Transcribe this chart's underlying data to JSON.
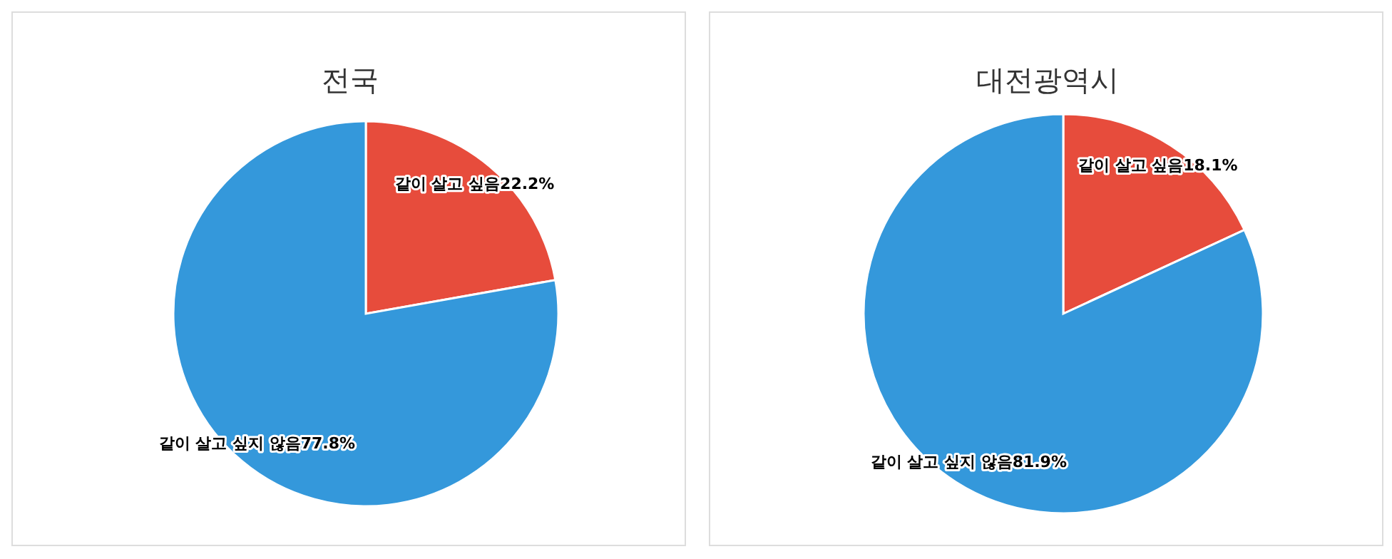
{
  "chart_data": [
    {
      "type": "pie",
      "title": "전국",
      "categories": [
        "같이 살고 싶음",
        "같이 살고 싶지 않음"
      ],
      "values": [
        22.2,
        77.8
      ],
      "colors": [
        "#e74c3c",
        "#3498db"
      ],
      "value_labels": [
        "22.2%",
        "77.8%"
      ]
    },
    {
      "type": "pie",
      "title": "대전광역시",
      "categories": [
        "같이 살고 싶음",
        "같이 살고 싶지 않음"
      ],
      "values": [
        18.1,
        81.9
      ],
      "colors": [
        "#e74c3c",
        "#3498db"
      ],
      "value_labels": [
        "18.1%",
        "81.9%"
      ]
    }
  ]
}
